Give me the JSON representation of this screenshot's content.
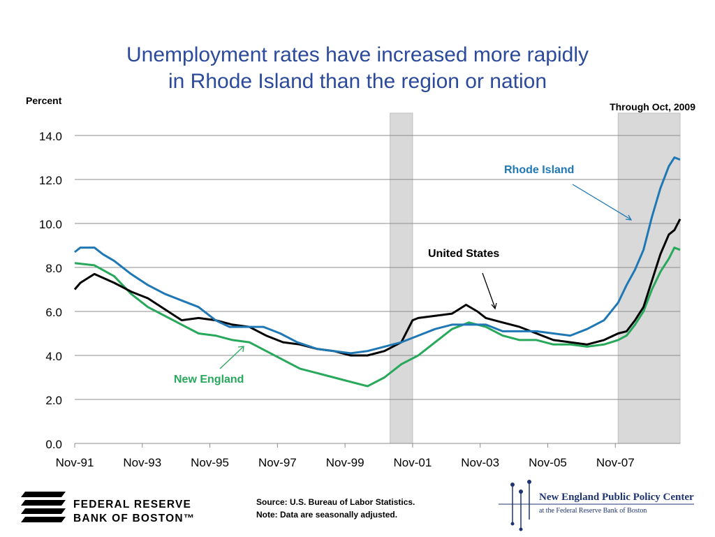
{
  "chart_data": {
    "type": "line",
    "title_line1": "Unemployment rates have increased more rapidly",
    "title_line2": "in Rhode Island than the region or nation",
    "ylabel": "Percent",
    "date_note": "Through Oct, 2009",
    "ylim": [
      0,
      14
    ],
    "yticks": [
      "0.0",
      "2.0",
      "4.0",
      "6.0",
      "8.0",
      "10.0",
      "12.0",
      "14.0"
    ],
    "xticks": [
      "Nov-91",
      "Nov-93",
      "Nov-95",
      "Nov-97",
      "Nov-99",
      "Nov-01",
      "Nov-03",
      "Nov-05",
      "Nov-07"
    ],
    "xrange": [
      "1991-11",
      "2009-10"
    ],
    "grid": true,
    "recessions": [
      [
        "2001-03",
        "2001-11"
      ],
      [
        "2007-12",
        "2009-10"
      ]
    ],
    "series": [
      {
        "name": "Rhode Island",
        "color": "#1f78b4",
        "points": [
          [
            "1991-11",
            8.7
          ],
          [
            "1992-01",
            8.9
          ],
          [
            "1992-06",
            8.9
          ],
          [
            "1992-09",
            8.6
          ],
          [
            "1993-01",
            8.3
          ],
          [
            "1993-07",
            7.7
          ],
          [
            "1994-01",
            7.2
          ],
          [
            "1994-07",
            6.8
          ],
          [
            "1995-01",
            6.5
          ],
          [
            "1995-07",
            6.2
          ],
          [
            "1996-01",
            5.6
          ],
          [
            "1996-06",
            5.3
          ],
          [
            "1996-12",
            5.3
          ],
          [
            "1997-06",
            5.3
          ],
          [
            "1997-12",
            5.0
          ],
          [
            "1998-06",
            4.6
          ],
          [
            "1999-01",
            4.3
          ],
          [
            "1999-07",
            4.2
          ],
          [
            "2000-01",
            4.1
          ],
          [
            "2000-07",
            4.2
          ],
          [
            "2001-01",
            4.4
          ],
          [
            "2001-07",
            4.6
          ],
          [
            "2002-01",
            4.9
          ],
          [
            "2002-07",
            5.2
          ],
          [
            "2003-01",
            5.4
          ],
          [
            "2003-07",
            5.4
          ],
          [
            "2004-01",
            5.4
          ],
          [
            "2004-07",
            5.1
          ],
          [
            "2005-01",
            5.1
          ],
          [
            "2005-07",
            5.1
          ],
          [
            "2006-01",
            5.0
          ],
          [
            "2006-07",
            4.9
          ],
          [
            "2007-01",
            5.2
          ],
          [
            "2007-07",
            5.6
          ],
          [
            "2007-12",
            6.4
          ],
          [
            "2008-03",
            7.2
          ],
          [
            "2008-06",
            7.9
          ],
          [
            "2008-09",
            8.8
          ],
          [
            "2008-12",
            10.3
          ],
          [
            "2009-03",
            11.6
          ],
          [
            "2009-06",
            12.6
          ],
          [
            "2009-08",
            13.0
          ],
          [
            "2009-10",
            12.9
          ]
        ]
      },
      {
        "name": "United States",
        "color": "#000000",
        "points": [
          [
            "1991-11",
            7.0
          ],
          [
            "1992-01",
            7.3
          ],
          [
            "1992-06",
            7.7
          ],
          [
            "1993-01",
            7.3
          ],
          [
            "1993-07",
            6.9
          ],
          [
            "1994-01",
            6.6
          ],
          [
            "1994-07",
            6.1
          ],
          [
            "1995-01",
            5.6
          ],
          [
            "1995-07",
            5.7
          ],
          [
            "1996-01",
            5.6
          ],
          [
            "1996-07",
            5.4
          ],
          [
            "1997-01",
            5.3
          ],
          [
            "1997-07",
            4.9
          ],
          [
            "1998-01",
            4.6
          ],
          [
            "1998-07",
            4.5
          ],
          [
            "1999-01",
            4.3
          ],
          [
            "1999-07",
            4.2
          ],
          [
            "2000-01",
            4.0
          ],
          [
            "2000-07",
            4.0
          ],
          [
            "2001-01",
            4.2
          ],
          [
            "2001-07",
            4.6
          ],
          [
            "2001-11",
            5.6
          ],
          [
            "2002-01",
            5.7
          ],
          [
            "2002-07",
            5.8
          ],
          [
            "2003-01",
            5.9
          ],
          [
            "2003-06",
            6.3
          ],
          [
            "2003-10",
            6.0
          ],
          [
            "2004-01",
            5.7
          ],
          [
            "2004-07",
            5.5
          ],
          [
            "2005-01",
            5.3
          ],
          [
            "2005-07",
            5.0
          ],
          [
            "2006-01",
            4.7
          ],
          [
            "2006-07",
            4.6
          ],
          [
            "2007-01",
            4.5
          ],
          [
            "2007-07",
            4.7
          ],
          [
            "2007-12",
            5.0
          ],
          [
            "2008-03",
            5.1
          ],
          [
            "2008-06",
            5.6
          ],
          [
            "2008-09",
            6.2
          ],
          [
            "2008-12",
            7.4
          ],
          [
            "2009-03",
            8.6
          ],
          [
            "2009-06",
            9.5
          ],
          [
            "2009-08",
            9.7
          ],
          [
            "2009-10",
            10.2
          ]
        ]
      },
      {
        "name": "New England",
        "color": "#27a85a",
        "points": [
          [
            "1991-11",
            8.2
          ],
          [
            "1992-06",
            8.1
          ],
          [
            "1993-01",
            7.6
          ],
          [
            "1993-07",
            6.8
          ],
          [
            "1994-01",
            6.2
          ],
          [
            "1994-07",
            5.8
          ],
          [
            "1995-01",
            5.4
          ],
          [
            "1995-07",
            5.0
          ],
          [
            "1996-01",
            4.9
          ],
          [
            "1996-07",
            4.7
          ],
          [
            "1997-01",
            4.6
          ],
          [
            "1997-07",
            4.2
          ],
          [
            "1998-01",
            3.8
          ],
          [
            "1998-07",
            3.4
          ],
          [
            "1999-01",
            3.2
          ],
          [
            "1999-07",
            3.0
          ],
          [
            "2000-01",
            2.8
          ],
          [
            "2000-07",
            2.6
          ],
          [
            "2001-01",
            3.0
          ],
          [
            "2001-07",
            3.6
          ],
          [
            "2002-01",
            4.0
          ],
          [
            "2002-07",
            4.6
          ],
          [
            "2003-01",
            5.2
          ],
          [
            "2003-07",
            5.5
          ],
          [
            "2004-01",
            5.3
          ],
          [
            "2004-07",
            4.9
          ],
          [
            "2005-01",
            4.7
          ],
          [
            "2005-07",
            4.7
          ],
          [
            "2006-01",
            4.5
          ],
          [
            "2006-07",
            4.5
          ],
          [
            "2007-01",
            4.4
          ],
          [
            "2007-07",
            4.5
          ],
          [
            "2007-12",
            4.7
          ],
          [
            "2008-03",
            4.9
          ],
          [
            "2008-06",
            5.4
          ],
          [
            "2008-09",
            6.0
          ],
          [
            "2008-12",
            7.0
          ],
          [
            "2009-03",
            7.8
          ],
          [
            "2009-06",
            8.4
          ],
          [
            "2009-08",
            8.9
          ],
          [
            "2009-10",
            8.8
          ]
        ]
      }
    ],
    "annotations": {
      "rhode_island": "Rhode Island",
      "united_states": "United States",
      "new_england": "New England"
    }
  },
  "footer": {
    "source_line1": "Source: U.S. Bureau of Labor Statistics.",
    "source_line2": "Note: Data are seasonally adjusted.",
    "frb_line1": "FEDERAL RESERVE",
    "frb_line2": "BANK OF BOSTON™",
    "nepp_name": "New England Public Policy Center",
    "nepp_sub": "at the Federal Reserve Bank of Boston"
  }
}
